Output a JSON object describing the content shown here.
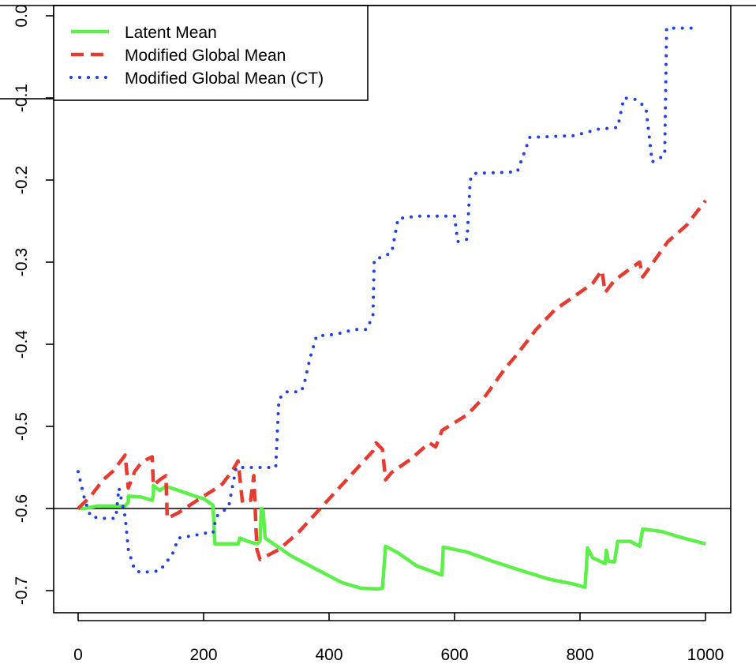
{
  "chart_data": {
    "type": "line",
    "title": "",
    "xlabel": "",
    "ylabel": "",
    "xlim": [
      0,
      1000
    ],
    "ylim": [
      -0.7,
      0.0
    ],
    "xticks": [
      "0",
      "200",
      "400",
      "600",
      "800",
      "1000"
    ],
    "yticks": [
      "0.0",
      "-0.1",
      "-0.2",
      "-0.3",
      "-0.4",
      "-0.5",
      "-0.6",
      "-0.7"
    ],
    "xtick_values": [
      0,
      200,
      400,
      600,
      800,
      1000
    ],
    "ytick_values": [
      0.0,
      -0.1,
      -0.2,
      -0.3,
      -0.4,
      -0.5,
      -0.6,
      -0.7
    ],
    "legend_position": "top-left",
    "reference_lines": [
      {
        "orientation": "horizontal",
        "value": -0.6,
        "color": "#000000"
      },
      {
        "orientation": "horizontal",
        "value": -0.101,
        "color": "#000000",
        "x_range": [
          -40,
          0
        ]
      }
    ],
    "series": [
      {
        "name": "Latent Mean",
        "color": "#5ef04a",
        "style": "solid",
        "points": [
          [
            0,
            -0.6
          ],
          [
            10,
            -0.6
          ],
          [
            30,
            -0.597
          ],
          [
            60,
            -0.597
          ],
          [
            75,
            -0.597
          ],
          [
            80,
            -0.592
          ],
          [
            80,
            -0.585
          ],
          [
            100,
            -0.586
          ],
          [
            118,
            -0.59
          ],
          [
            120,
            -0.583
          ],
          [
            120,
            -0.572
          ],
          [
            130,
            -0.578
          ],
          [
            140,
            -0.573
          ],
          [
            160,
            -0.578
          ],
          [
            190,
            -0.586
          ],
          [
            200,
            -0.588
          ],
          [
            215,
            -0.596
          ],
          [
            218,
            -0.643
          ],
          [
            235,
            -0.643
          ],
          [
            255,
            -0.643
          ],
          [
            258,
            -0.636
          ],
          [
            270,
            -0.64
          ],
          [
            285,
            -0.643
          ],
          [
            290,
            -0.64
          ],
          [
            292,
            -0.6
          ],
          [
            295,
            -0.603
          ],
          [
            298,
            -0.636
          ],
          [
            340,
            -0.658
          ],
          [
            380,
            -0.674
          ],
          [
            420,
            -0.69
          ],
          [
            450,
            -0.697
          ],
          [
            478,
            -0.698
          ],
          [
            485,
            -0.697
          ],
          [
            490,
            -0.646
          ],
          [
            510,
            -0.654
          ],
          [
            540,
            -0.67
          ],
          [
            580,
            -0.681
          ],
          [
            582,
            -0.647
          ],
          [
            620,
            -0.653
          ],
          [
            660,
            -0.664
          ],
          [
            700,
            -0.674
          ],
          [
            750,
            -0.686
          ],
          [
            790,
            -0.692
          ],
          [
            808,
            -0.696
          ],
          [
            812,
            -0.648
          ],
          [
            820,
            -0.66
          ],
          [
            840,
            -0.667
          ],
          [
            842,
            -0.651
          ],
          [
            845,
            -0.664
          ],
          [
            855,
            -0.665
          ],
          [
            860,
            -0.64
          ],
          [
            880,
            -0.64
          ],
          [
            895,
            -0.646
          ],
          [
            900,
            -0.625
          ],
          [
            930,
            -0.628
          ],
          [
            960,
            -0.635
          ],
          [
            1000,
            -0.643
          ]
        ]
      },
      {
        "name": "Modified Global Mean",
        "color": "#e53b30",
        "style": "dashed",
        "points": [
          [
            0,
            -0.6
          ],
          [
            20,
            -0.585
          ],
          [
            40,
            -0.565
          ],
          [
            55,
            -0.555
          ],
          [
            70,
            -0.54
          ],
          [
            75,
            -0.535
          ],
          [
            80,
            -0.575
          ],
          [
            90,
            -0.555
          ],
          [
            100,
            -0.545
          ],
          [
            110,
            -0.54
          ],
          [
            118,
            -0.537
          ],
          [
            120,
            -0.572
          ],
          [
            130,
            -0.565
          ],
          [
            140,
            -0.56
          ],
          [
            142,
            -0.612
          ],
          [
            160,
            -0.605
          ],
          [
            180,
            -0.595
          ],
          [
            200,
            -0.585
          ],
          [
            215,
            -0.578
          ],
          [
            230,
            -0.57
          ],
          [
            245,
            -0.555
          ],
          [
            255,
            -0.542
          ],
          [
            262,
            -0.593
          ],
          [
            275,
            -0.59
          ],
          [
            280,
            -0.56
          ],
          [
            285,
            -0.65
          ],
          [
            290,
            -0.662
          ],
          [
            295,
            -0.66
          ],
          [
            300,
            -0.658
          ],
          [
            320,
            -0.65
          ],
          [
            350,
            -0.63
          ],
          [
            380,
            -0.605
          ],
          [
            410,
            -0.58
          ],
          [
            440,
            -0.555
          ],
          [
            470,
            -0.53
          ],
          [
            475,
            -0.52
          ],
          [
            485,
            -0.528
          ],
          [
            490,
            -0.565
          ],
          [
            500,
            -0.556
          ],
          [
            530,
            -0.54
          ],
          [
            560,
            -0.52
          ],
          [
            570,
            -0.525
          ],
          [
            580,
            -0.505
          ],
          [
            620,
            -0.486
          ],
          [
            650,
            -0.462
          ],
          [
            680,
            -0.43
          ],
          [
            700,
            -0.412
          ],
          [
            730,
            -0.382
          ],
          [
            760,
            -0.358
          ],
          [
            790,
            -0.342
          ],
          [
            820,
            -0.326
          ],
          [
            835,
            -0.31
          ],
          [
            840,
            -0.337
          ],
          [
            855,
            -0.322
          ],
          [
            880,
            -0.308
          ],
          [
            895,
            -0.3
          ],
          [
            900,
            -0.318
          ],
          [
            915,
            -0.302
          ],
          [
            940,
            -0.275
          ],
          [
            970,
            -0.255
          ],
          [
            1000,
            -0.225
          ]
        ]
      },
      {
        "name": "Modified Global Mean (CT)",
        "color": "#1f3fe0",
        "style": "dotted",
        "points": [
          [
            0,
            -0.555
          ],
          [
            10,
            -0.588
          ],
          [
            20,
            -0.61
          ],
          [
            40,
            -0.612
          ],
          [
            60,
            -0.612
          ],
          [
            65,
            -0.575
          ],
          [
            75,
            -0.61
          ],
          [
            80,
            -0.65
          ],
          [
            90,
            -0.675
          ],
          [
            100,
            -0.678
          ],
          [
            130,
            -0.676
          ],
          [
            140,
            -0.666
          ],
          [
            150,
            -0.656
          ],
          [
            160,
            -0.636
          ],
          [
            190,
            -0.632
          ],
          [
            200,
            -0.63
          ],
          [
            215,
            -0.63
          ],
          [
            220,
            -0.61
          ],
          [
            240,
            -0.598
          ],
          [
            245,
            -0.577
          ],
          [
            252,
            -0.55
          ],
          [
            280,
            -0.55
          ],
          [
            315,
            -0.55
          ],
          [
            318,
            -0.5
          ],
          [
            320,
            -0.467
          ],
          [
            330,
            -0.458
          ],
          [
            355,
            -0.458
          ],
          [
            360,
            -0.45
          ],
          [
            365,
            -0.432
          ],
          [
            370,
            -0.416
          ],
          [
            380,
            -0.39
          ],
          [
            410,
            -0.388
          ],
          [
            440,
            -0.382
          ],
          [
            460,
            -0.382
          ],
          [
            470,
            -0.365
          ],
          [
            472,
            -0.297
          ],
          [
            490,
            -0.292
          ],
          [
            500,
            -0.288
          ],
          [
            510,
            -0.247
          ],
          [
            540,
            -0.244
          ],
          [
            600,
            -0.244
          ],
          [
            605,
            -0.275
          ],
          [
            620,
            -0.272
          ],
          [
            625,
            -0.2
          ],
          [
            630,
            -0.192
          ],
          [
            700,
            -0.19
          ],
          [
            720,
            -0.148
          ],
          [
            790,
            -0.146
          ],
          [
            830,
            -0.138
          ],
          [
            860,
            -0.136
          ],
          [
            870,
            -0.1
          ],
          [
            890,
            -0.102
          ],
          [
            905,
            -0.112
          ],
          [
            915,
            -0.178
          ],
          [
            935,
            -0.17
          ],
          [
            938,
            -0.015
          ],
          [
            960,
            -0.015
          ],
          [
            985,
            -0.015
          ]
        ]
      }
    ]
  }
}
